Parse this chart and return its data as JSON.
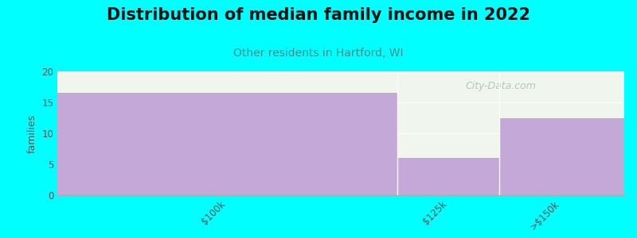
{
  "title": "Distribution of median family income in 2022",
  "subtitle": "Other residents in Hartford, WI",
  "categories": [
    "$100k",
    "$125k",
    ">$150k"
  ],
  "values": [
    16.5,
    6.0,
    12.5
  ],
  "bar_color": "#c4a8d8",
  "background_color": "#00ffff",
  "plot_bg_color": "#f0f5ee",
  "ylabel": "families",
  "ylim": [
    0,
    20
  ],
  "yticks": [
    0,
    5,
    10,
    15,
    20
  ],
  "title_fontsize": 15,
  "subtitle_fontsize": 10,
  "subtitle_color": "#3a9090",
  "title_color": "#111111",
  "watermark": "City-Data.com",
  "watermark_color": "#b0bdb0",
  "bin_edges": [
    0.0,
    0.6,
    0.78,
    1.0
  ]
}
